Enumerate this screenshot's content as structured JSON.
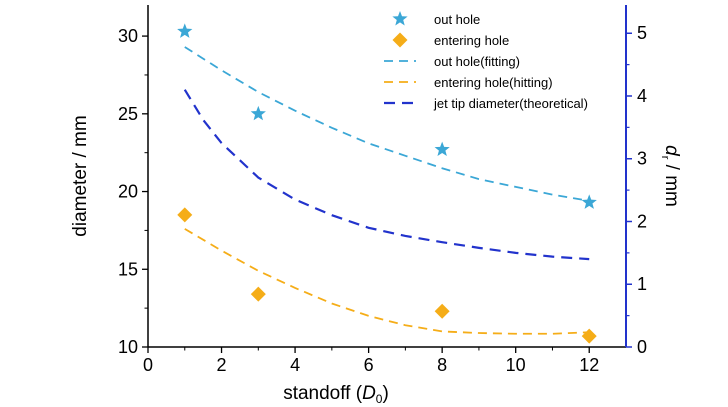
{
  "chart_data": {
    "type": "scatter",
    "xlabel": "standoff (",
    "xlabel_var": "D",
    "xlabel_sub": "0",
    "xlabel_close": ")",
    "ylabel": "diameter / mm",
    "y2label": "d",
    "y2label_sub": "r",
    "y2label_unit": " / mm",
    "xlim": [
      0,
      13
    ],
    "ylim": [
      10,
      32
    ],
    "y2lim": [
      0,
      5.45
    ],
    "xticks": [
      0,
      2,
      4,
      6,
      8,
      10,
      12
    ],
    "yticks": [
      10,
      15,
      20,
      25,
      30
    ],
    "y2ticks": [
      0,
      1,
      2,
      3,
      4,
      5
    ],
    "legend_position": "top-right",
    "colors": {
      "out_hole": "#3ba7d6",
      "entering_hole": "#f5ad18",
      "jet_tip": "#2233cc",
      "right_axis": "#2233cc"
    },
    "series": [
      {
        "name": "out hole",
        "kind": "points",
        "marker": "star",
        "axis": "left",
        "x": [
          1,
          3,
          8,
          12
        ],
        "y": [
          30.3,
          25.0,
          22.7,
          19.3
        ]
      },
      {
        "name": "entering hole",
        "kind": "points",
        "marker": "diamond",
        "axis": "left",
        "x": [
          1,
          3,
          8,
          12
        ],
        "y": [
          18.5,
          13.4,
          12.3,
          10.7
        ]
      },
      {
        "name": "out hole(fitting)",
        "kind": "line",
        "axis": "left",
        "x": [
          1,
          2,
          3,
          4,
          5,
          6,
          7,
          8,
          9,
          10,
          11,
          12
        ],
        "y": [
          29.3,
          27.8,
          26.4,
          25.2,
          24.1,
          23.1,
          22.3,
          21.5,
          20.8,
          20.3,
          19.8,
          19.4
        ]
      },
      {
        "name": "entering hole(hitting)",
        "kind": "line",
        "axis": "left",
        "x": [
          1,
          2,
          3,
          4,
          5,
          6,
          7,
          8,
          9,
          10,
          11,
          12
        ],
        "y": [
          17.6,
          16.2,
          14.9,
          13.8,
          12.8,
          12.0,
          11.4,
          11.0,
          10.9,
          10.85,
          10.85,
          10.95
        ]
      },
      {
        "name": "jet tip diameter(theoretical)",
        "kind": "line",
        "axis": "right",
        "x": [
          1,
          1.5,
          2,
          3,
          4,
          5,
          6,
          7,
          8,
          9,
          10,
          11,
          12
        ],
        "y": [
          4.1,
          3.62,
          3.25,
          2.7,
          2.35,
          2.1,
          1.9,
          1.77,
          1.67,
          1.58,
          1.5,
          1.44,
          1.4
        ]
      }
    ]
  }
}
